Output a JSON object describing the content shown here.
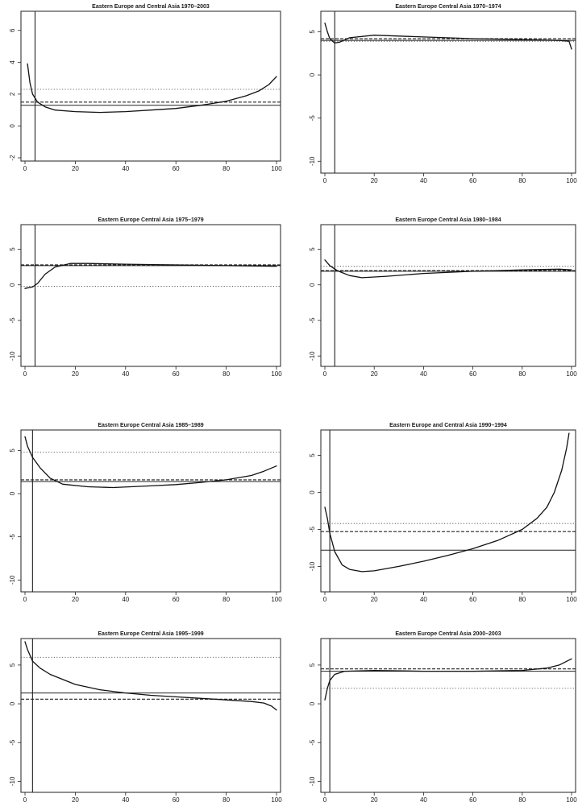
{
  "chart_data": [
    {
      "type": "line",
      "title": "Eastern Europe and Central Asia 1970–2003",
      "xlim": [
        0,
        100
      ],
      "ylim": [
        -2,
        7
      ],
      "xticks": [
        0,
        20,
        40,
        60,
        80,
        100
      ],
      "yticks": [
        -2,
        0,
        2,
        4,
        6
      ],
      "vline": 4,
      "hlines": [
        {
          "style": "solid",
          "y": 1.3
        },
        {
          "style": "dashed",
          "y": 1.5
        },
        {
          "style": "dotted",
          "y": 2.3
        }
      ],
      "curve": [
        [
          1,
          3.9
        ],
        [
          2,
          2.7
        ],
        [
          3,
          2.0
        ],
        [
          5,
          1.5
        ],
        [
          8,
          1.2
        ],
        [
          12,
          1.0
        ],
        [
          20,
          0.9
        ],
        [
          30,
          0.85
        ],
        [
          40,
          0.9
        ],
        [
          50,
          1.0
        ],
        [
          60,
          1.1
        ],
        [
          70,
          1.3
        ],
        [
          80,
          1.55
        ],
        [
          88,
          1.9
        ],
        [
          93,
          2.2
        ],
        [
          97,
          2.6
        ],
        [
          100,
          3.1
        ]
      ],
      "grid": false
    },
    {
      "type": "line",
      "title": "Eastern Europe Central Asia 1970–1974",
      "xlim": [
        0,
        100
      ],
      "ylim": [
        -11,
        7
      ],
      "xticks": [
        0,
        20,
        40,
        60,
        80,
        100
      ],
      "yticks": [
        -10,
        -5,
        0,
        5
      ],
      "vline": 4,
      "hlines": [
        {
          "style": "solid",
          "y": 4.0
        },
        {
          "style": "dashed",
          "y": 4.2
        },
        {
          "style": "dotted",
          "y": 3.9
        }
      ],
      "curve": [
        [
          0,
          6.0
        ],
        [
          1,
          5.0
        ],
        [
          2,
          4.2
        ],
        [
          4,
          3.7
        ],
        [
          6,
          3.8
        ],
        [
          10,
          4.3
        ],
        [
          20,
          4.6
        ],
        [
          40,
          4.4
        ],
        [
          60,
          4.2
        ],
        [
          80,
          4.1
        ],
        [
          95,
          4.0
        ],
        [
          99,
          3.9
        ],
        [
          100,
          3.0
        ]
      ],
      "grid": false
    },
    {
      "type": "line",
      "title": "Eastern Europe Central Asia 1975–1979",
      "xlim": [
        0,
        100
      ],
      "ylim": [
        -11,
        8
      ],
      "xticks": [
        0,
        20,
        40,
        60,
        80,
        100
      ],
      "yticks": [
        -10,
        -5,
        0,
        5
      ],
      "vline": 4,
      "hlines": [
        {
          "style": "solid",
          "y": 2.7
        },
        {
          "style": "dashed",
          "y": 2.8
        },
        {
          "style": "dotted",
          "y": -0.2
        }
      ],
      "curve": [
        [
          0,
          -0.5
        ],
        [
          3,
          -0.3
        ],
        [
          5,
          0.2
        ],
        [
          8,
          1.5
        ],
        [
          12,
          2.5
        ],
        [
          18,
          3.0
        ],
        [
          25,
          3.0
        ],
        [
          40,
          2.9
        ],
        [
          60,
          2.8
        ],
        [
          80,
          2.7
        ],
        [
          100,
          2.6
        ]
      ],
      "grid": false
    },
    {
      "type": "line",
      "title": "Eastern Europe Central Asia 1980–1984",
      "xlim": [
        0,
        100
      ],
      "ylim": [
        -11,
        8
      ],
      "xticks": [
        0,
        20,
        40,
        60,
        80,
        100
      ],
      "yticks": [
        -10,
        -5,
        0,
        5
      ],
      "vline": 4,
      "hlines": [
        {
          "style": "solid",
          "y": 1.9
        },
        {
          "style": "dashed",
          "y": 2.0
        },
        {
          "style": "dotted",
          "y": 2.6
        }
      ],
      "curve": [
        [
          0,
          3.5
        ],
        [
          2,
          2.7
        ],
        [
          5,
          2.0
        ],
        [
          10,
          1.3
        ],
        [
          15,
          1.0
        ],
        [
          25,
          1.2
        ],
        [
          40,
          1.6
        ],
        [
          60,
          1.9
        ],
        [
          80,
          2.1
        ],
        [
          95,
          2.2
        ],
        [
          100,
          2.1
        ]
      ],
      "grid": false
    },
    {
      "type": "line",
      "title": "Eastern Europe Central Asia 1985–1989",
      "xlim": [
        0,
        100
      ],
      "ylim": [
        -11,
        7
      ],
      "xticks": [
        0,
        20,
        40,
        60,
        80,
        100
      ],
      "yticks": [
        -10,
        -5,
        0,
        5
      ],
      "vline": 3,
      "hlines": [
        {
          "style": "solid",
          "y": 1.4
        },
        {
          "style": "dashed",
          "y": 1.6
        },
        {
          "style": "dotted",
          "y": 4.8
        }
      ],
      "curve": [
        [
          0,
          6.6
        ],
        [
          1,
          5.5
        ],
        [
          3,
          4.2
        ],
        [
          6,
          3.0
        ],
        [
          10,
          1.8
        ],
        [
          15,
          1.1
        ],
        [
          25,
          0.8
        ],
        [
          35,
          0.7
        ],
        [
          50,
          0.9
        ],
        [
          60,
          1.05
        ],
        [
          70,
          1.3
        ],
        [
          80,
          1.6
        ],
        [
          90,
          2.1
        ],
        [
          95,
          2.6
        ],
        [
          100,
          3.2
        ]
      ],
      "grid": false
    },
    {
      "type": "line",
      "title": "Eastern Europe and Central Asia 1990–1994",
      "xlim": [
        0,
        100
      ],
      "ylim": [
        -13,
        8
      ],
      "xticks": [
        0,
        20,
        40,
        60,
        80,
        100
      ],
      "yticks": [
        -10,
        -5,
        0,
        5
      ],
      "vline": 2,
      "hlines": [
        {
          "style": "solid",
          "y": -7.8
        },
        {
          "style": "dashed",
          "y": -5.3
        },
        {
          "style": "dotted",
          "y": -4.2
        }
      ],
      "curve": [
        [
          0,
          -2
        ],
        [
          1,
          -3.5
        ],
        [
          2,
          -5.5
        ],
        [
          4,
          -8
        ],
        [
          7,
          -9.8
        ],
        [
          10,
          -10.4
        ],
        [
          15,
          -10.7
        ],
        [
          20,
          -10.6
        ],
        [
          30,
          -10
        ],
        [
          40,
          -9.3
        ],
        [
          50,
          -8.5
        ],
        [
          60,
          -7.6
        ],
        [
          70,
          -6.5
        ],
        [
          80,
          -5
        ],
        [
          86,
          -3.5
        ],
        [
          90,
          -2
        ],
        [
          93,
          0
        ],
        [
          96,
          3
        ],
        [
          98,
          6
        ],
        [
          99,
          8
        ]
      ],
      "grid": false
    },
    {
      "type": "line",
      "title": "Eastern Europe Central Asia 1995–1999",
      "xlim": [
        0,
        100
      ],
      "ylim": [
        -11,
        8
      ],
      "xticks": [
        0,
        20,
        40,
        60,
        80,
        100
      ],
      "yticks": [
        -10,
        -5,
        0,
        5
      ],
      "vline": 3,
      "hlines": [
        {
          "style": "solid",
          "y": 1.4
        },
        {
          "style": "dashed",
          "y": 0.6
        },
        {
          "style": "dotted",
          "y": 6.0
        }
      ],
      "curve": [
        [
          0,
          8.0
        ],
        [
          1,
          7.0
        ],
        [
          3,
          5.5
        ],
        [
          6,
          4.6
        ],
        [
          10,
          3.8
        ],
        [
          20,
          2.5
        ],
        [
          30,
          1.8
        ],
        [
          40,
          1.4
        ],
        [
          50,
          1.1
        ],
        [
          60,
          0.9
        ],
        [
          70,
          0.7
        ],
        [
          80,
          0.5
        ],
        [
          90,
          0.3
        ],
        [
          95,
          0.1
        ],
        [
          98,
          -0.3
        ],
        [
          100,
          -0.8
        ]
      ],
      "grid": false
    },
    {
      "type": "line",
      "title": "Eastern Europe Central Asia 2000–2003",
      "xlim": [
        0,
        100
      ],
      "ylim": [
        -11,
        8
      ],
      "xticks": [
        0,
        20,
        40,
        60,
        80,
        100
      ],
      "yticks": [
        -10,
        -5,
        0,
        5
      ],
      "vline": 2,
      "hlines": [
        {
          "style": "solid",
          "y": 4.2
        },
        {
          "style": "dashed",
          "y": 4.5
        },
        {
          "style": "dotted",
          "y": 2.0
        }
      ],
      "curve": [
        [
          0,
          0.5
        ],
        [
          1,
          2
        ],
        [
          2,
          3
        ],
        [
          4,
          3.8
        ],
        [
          8,
          4.2
        ],
        [
          20,
          4.3
        ],
        [
          40,
          4.2
        ],
        [
          60,
          4.2
        ],
        [
          80,
          4.3
        ],
        [
          90,
          4.6
        ],
        [
          95,
          5.0
        ],
        [
          100,
          5.8
        ]
      ],
      "grid": false
    }
  ]
}
